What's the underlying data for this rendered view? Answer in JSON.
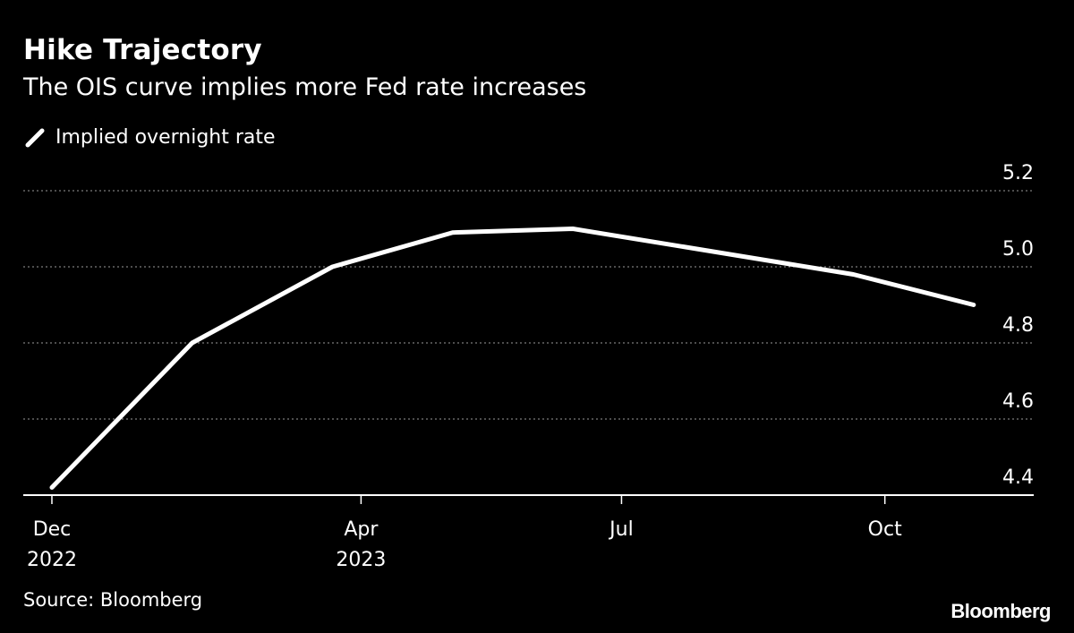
{
  "chart_data": {
    "type": "line",
    "title": "Hike Trajectory",
    "subtitle": "The OIS curve implies more Fed rate increases",
    "series": [
      {
        "name": "Implied overnight rate",
        "color": "#ffffff",
        "x": [
          "2022-12-14",
          "2023-02-01",
          "2023-03-22",
          "2023-05-03",
          "2023-06-14",
          "2023-09-20",
          "2023-11-01"
        ],
        "values": [
          4.42,
          4.8,
          5.0,
          5.09,
          5.1,
          4.98,
          4.9
        ]
      }
    ],
    "xlim": [
      "2022-12-04",
      "2023-11-22"
    ],
    "ylim": [
      4.4,
      5.2
    ],
    "y_ticks": [
      4.4,
      4.6,
      4.8,
      5.0,
      5.2
    ],
    "y_tick_labels": [
      "4.4",
      "4.6",
      "4.8",
      "5.0",
      "5.2"
    ],
    "y_axis_side": "right",
    "x_ticks": [
      {
        "date": "2022-12-14",
        "label": "Dec",
        "sublabel": "2022"
      },
      {
        "date": "2023-04-01",
        "label": "Apr",
        "sublabel": "2023"
      },
      {
        "date": "2023-07-01",
        "label": "Jul",
        "sublabel": ""
      },
      {
        "date": "2023-10-01",
        "label": "Oct",
        "sublabel": ""
      }
    ],
    "grid": "horizontal dotted",
    "legend_placement": "top-left",
    "background": "#000000"
  },
  "source": "Source: Bloomberg",
  "logo": "Bloomberg"
}
